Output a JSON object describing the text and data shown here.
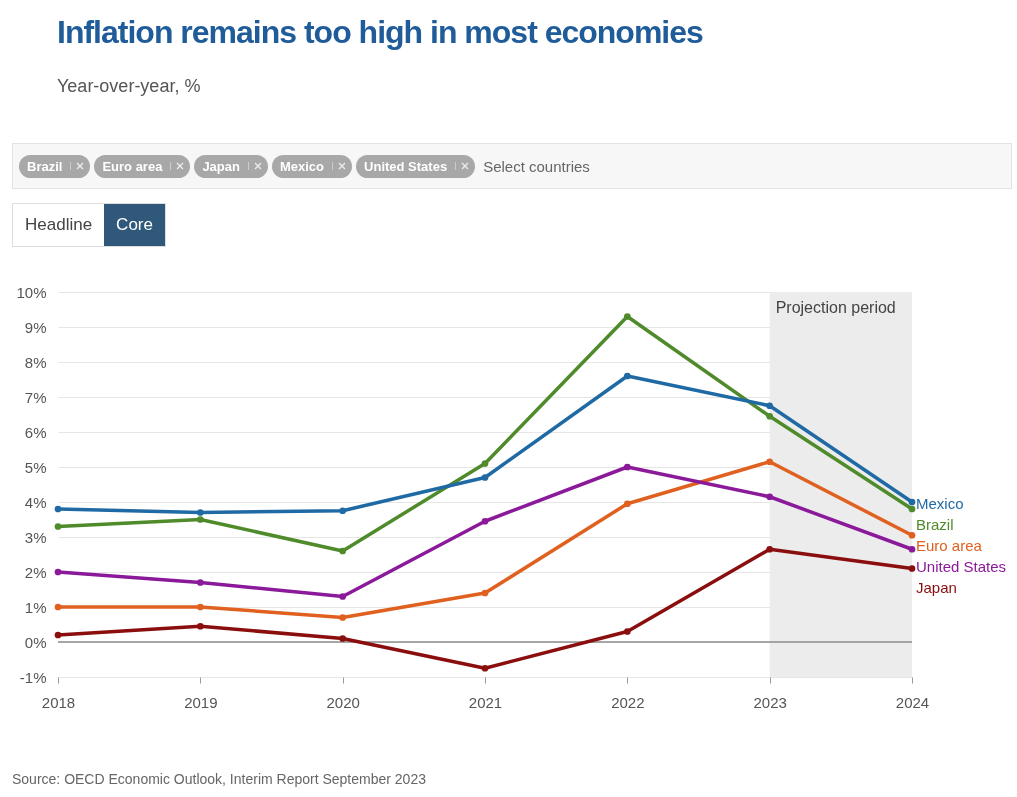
{
  "chart_data": {
    "type": "line",
    "title": "Inflation remains too high in most economies",
    "subtitle": "Year-over-year, %",
    "x": [
      2018,
      2019,
      2020,
      2021,
      2022,
      2023,
      2024
    ],
    "xlim": [
      2018,
      2024
    ],
    "xticks": [
      {
        "value": 2018,
        "label": "2018"
      },
      {
        "value": 2019,
        "label": "2019"
      },
      {
        "value": 2020,
        "label": "2020"
      },
      {
        "value": 2021,
        "label": "2021"
      },
      {
        "value": 2022,
        "label": "2022"
      },
      {
        "value": 2023,
        "label": "2023"
      },
      {
        "value": 2024,
        "label": "2024"
      }
    ],
    "ylim": [
      -1,
      10
    ],
    "yticks": [
      {
        "value": -1,
        "label": "-1%"
      },
      {
        "value": 0,
        "label": "0%"
      },
      {
        "value": 1,
        "label": "1%"
      },
      {
        "value": 2,
        "label": "2%"
      },
      {
        "value": 3,
        "label": "3%"
      },
      {
        "value": 4,
        "label": "4%"
      },
      {
        "value": 5,
        "label": "5%"
      },
      {
        "value": 6,
        "label": "6%"
      },
      {
        "value": 7,
        "label": "7%"
      },
      {
        "value": 8,
        "label": "8%"
      },
      {
        "value": 9,
        "label": "9%"
      },
      {
        "value": 10,
        "label": "10%"
      }
    ],
    "series": [
      {
        "name": "Brazil",
        "color": "#4f8a2b",
        "values": [
          3.3,
          3.5,
          2.6,
          5.1,
          9.3,
          6.45,
          3.8
        ]
      },
      {
        "name": "Euro area",
        "color": "#e0601f",
        "values": [
          1.0,
          1.0,
          0.7,
          1.4,
          3.95,
          5.15,
          3.05
        ]
      },
      {
        "name": "Japan",
        "color": "#8b0e0e",
        "values": [
          0.2,
          0.45,
          0.1,
          -0.75,
          0.3,
          2.65,
          2.1
        ]
      },
      {
        "name": "Mexico",
        "color": "#1f6aa5",
        "values": [
          3.8,
          3.7,
          3.75,
          4.7,
          7.6,
          6.75,
          4.0
        ]
      },
      {
        "name": "United States",
        "color": "#8b1a9a",
        "values": [
          2.0,
          1.7,
          1.3,
          3.45,
          5.0,
          4.15,
          2.65
        ]
      }
    ],
    "bands": [
      {
        "axis": "x",
        "from": 2023,
        "to": 2024,
        "label": "Projection period",
        "color": "#ececec"
      }
    ],
    "ref_lines": [
      {
        "axis": "y",
        "value": 0,
        "color": "#8c8c8c"
      }
    ],
    "grid": "y",
    "marker": "circle",
    "line_style": "solid",
    "annotations": [
      "Source: OECD Economic Outlook, Interim Report September 2023",
      "Select countries",
      "Headline",
      "Core"
    ]
  }
}
